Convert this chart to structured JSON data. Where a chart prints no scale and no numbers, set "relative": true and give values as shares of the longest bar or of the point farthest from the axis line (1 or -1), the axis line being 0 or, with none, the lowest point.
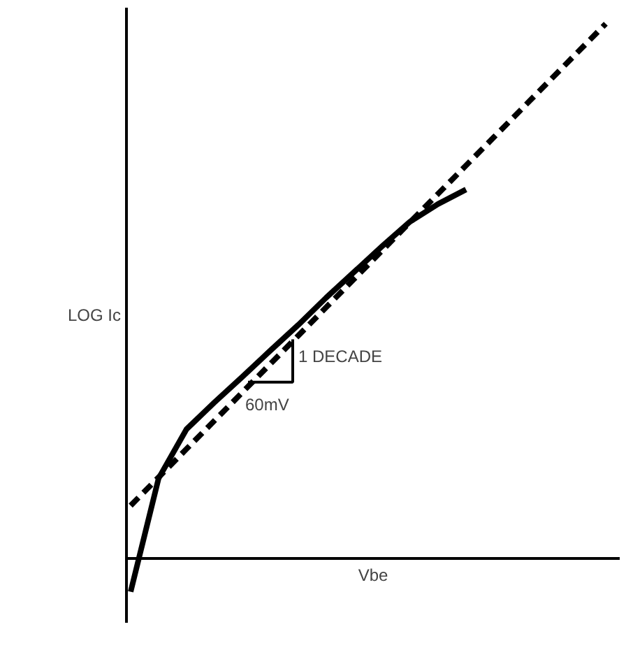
{
  "chart_data": {
    "type": "line",
    "relative": true,
    "ylabel": "LOG Ic",
    "xlabel": "Vbe",
    "categories": [
      null,
      null,
      null,
      null,
      null,
      null,
      null,
      null,
      null,
      null,
      null,
      null,
      null,
      null,
      null,
      null,
      null,
      null
    ],
    "annotations": [
      "1 DECADE",
      "60mV"
    ],
    "series": [
      {
        "color": "#000000",
        "line_style": "dashed",
        "values": [
          0.099,
          0.152,
          0.205,
          0.258,
          0.311,
          0.364,
          0.417,
          0.47,
          0.523,
          0.576,
          0.629,
          0.682,
          0.735,
          0.788,
          0.841,
          0.894,
          0.947,
          1.0
        ]
      },
      {
        "color": "#000000",
        "line_style": "solid",
        "values": [
          -0.062,
          0.15,
          0.242,
          0.292,
          0.34,
          0.389,
          0.437,
          0.488,
          0.536,
          0.584,
          0.63,
          0.663,
          0.69,
          null,
          null,
          null,
          null,
          null
        ]
      }
    ]
  }
}
